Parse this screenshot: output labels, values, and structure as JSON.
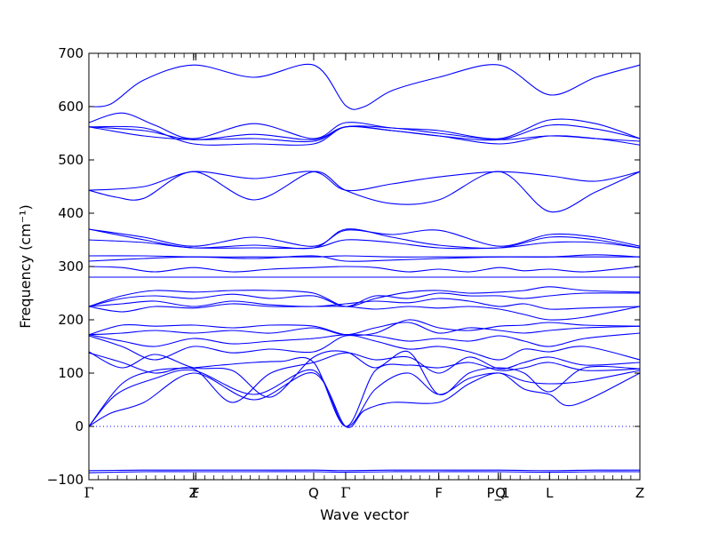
{
  "chart_data": {
    "type": "line",
    "title": "",
    "xlabel": "Wave vector",
    "ylabel": "Frequency (cm⁻¹)",
    "ylim": [
      -100,
      700
    ],
    "yticks": [
      -100,
      0,
      100,
      200,
      300,
      400,
      500,
      600,
      700
    ],
    "xlim": [
      0,
      100
    ],
    "x_ticks": [
      {
        "x": 0,
        "label": "Γ"
      },
      {
        "x": 19.0,
        "label": "Z"
      },
      {
        "x": 19.4,
        "label": "F"
      },
      {
        "x": 40.8,
        "label": "Q"
      },
      {
        "x": 46.6,
        "label": "Γ"
      },
      {
        "x": 63.5,
        "label": "F"
      },
      {
        "x": 74.3,
        "label": "P_1"
      },
      {
        "x": 74.7,
        "label": "Q"
      },
      {
        "x": 83.6,
        "label": "L"
      },
      {
        "x": 100,
        "label": "Z"
      }
    ],
    "zero_line": {
      "y": 0,
      "style": "dotted"
    },
    "series_color": "#0000ff",
    "series": [
      {
        "x": [
          0,
          10,
          19,
          30,
          40.8,
          46.6,
          55,
          63.5,
          74.5,
          83.6,
          92,
          100
        ],
        "y": [
          -87,
          -85,
          -85,
          -85,
          -85,
          -86,
          -85,
          -85,
          -85,
          -86,
          -85,
          -85
        ]
      },
      {
        "x": [
          0,
          10,
          19,
          30,
          40.8,
          46.6,
          55,
          63.5,
          74.5,
          83.6,
          92,
          100
        ],
        "y": [
          -83,
          -82,
          -82,
          -82,
          -82,
          -83,
          -82,
          -82,
          -82,
          -83,
          -82,
          -82
        ]
      },
      {
        "x": [
          0,
          4,
          10,
          19,
          30,
          40.8,
          46.6,
          50,
          55,
          63.5,
          69,
          74.5,
          79,
          83.6,
          88,
          100
        ],
        "y": [
          0,
          25,
          45,
          100,
          50,
          100,
          0,
          30,
          45,
          45,
          80,
          100,
          70,
          60,
          40,
          100
        ]
      },
      {
        "x": [
          0,
          5,
          12,
          19,
          30,
          40.8,
          46.6,
          52,
          58,
          63.5,
          69,
          74.5,
          79,
          83.6,
          90,
          100
        ],
        "y": [
          0,
          60,
          90,
          105,
          60,
          105,
          0,
          70,
          100,
          60,
          90,
          100,
          85,
          80,
          85,
          105
        ]
      },
      {
        "x": [
          0,
          6,
          12,
          19,
          24,
          30,
          35,
          40.8,
          46.6,
          52,
          58,
          63.5,
          69,
          74.5,
          79,
          83.6,
          90,
          100
        ],
        "y": [
          0,
          80,
          105,
          110,
          115,
          120,
          122,
          120,
          0,
          105,
          115,
          110,
          120,
          105,
          110,
          120,
          105,
          108
        ]
      },
      {
        "x": [
          0,
          6,
          12,
          19,
          26,
          33,
          40.8,
          46.6,
          52,
          58,
          63.5,
          69,
          74.5,
          79,
          83.6,
          90,
          100
        ],
        "y": [
          140,
          110,
          135,
          110,
          105,
          55,
          130,
          140,
          110,
          140,
          60,
          100,
          110,
          100,
          65,
          110,
          108
        ]
      },
      {
        "x": [
          0,
          6,
          12,
          19,
          26,
          33,
          40.8,
          46.6,
          52,
          58,
          63.5,
          69,
          74.5,
          79,
          83.6,
          90,
          100
        ],
        "y": [
          138,
          120,
          100,
          108,
          45,
          100,
          120,
          138,
          125,
          130,
          100,
          130,
          108,
          120,
          130,
          115,
          120
        ]
      },
      {
        "x": [
          0,
          6,
          12,
          19,
          26,
          33,
          40.8,
          46.6,
          52,
          58,
          63.5,
          69,
          74.5,
          79,
          83.6,
          90,
          100
        ],
        "y": [
          170,
          150,
          125,
          150,
          138,
          145,
          140,
          170,
          160,
          145,
          150,
          140,
          125,
          145,
          140,
          150,
          125
        ]
      },
      {
        "x": [
          0,
          6,
          12,
          19,
          26,
          33,
          40.8,
          46.6,
          52,
          58,
          63.5,
          69,
          74.5,
          79,
          83.6,
          90,
          100
        ],
        "y": [
          172,
          160,
          150,
          165,
          155,
          160,
          165,
          172,
          170,
          160,
          165,
          160,
          170,
          160,
          150,
          165,
          175
        ]
      },
      {
        "x": [
          0,
          6,
          12,
          19,
          26,
          33,
          40.8,
          46.6,
          52,
          58,
          63.5,
          69,
          74.5,
          79,
          83.6,
          90,
          100
        ],
        "y": [
          172,
          175,
          180,
          175,
          180,
          175,
          185,
          172,
          185,
          195,
          175,
          185,
          180,
          175,
          180,
          185,
          188
        ]
      },
      {
        "x": [
          0,
          6,
          12,
          19,
          26,
          33,
          40.8,
          46.6,
          52,
          58,
          63.5,
          69,
          74.5,
          79,
          83.6,
          90,
          100
        ],
        "y": [
          172,
          190,
          188,
          190,
          185,
          190,
          188,
          172,
          175,
          200,
          185,
          180,
          188,
          190,
          195,
          190,
          188
        ]
      },
      {
        "x": [
          0,
          6,
          12,
          19,
          26,
          33,
          40.8,
          46.6,
          52,
          58,
          63.5,
          69,
          74.5,
          79,
          83.6,
          90,
          100
        ],
        "y": [
          225,
          215,
          225,
          222,
          230,
          225,
          225,
          225,
          220,
          225,
          222,
          225,
          220,
          210,
          200,
          205,
          225
        ]
      },
      {
        "x": [
          0,
          6,
          12,
          19,
          26,
          33,
          40.8,
          46.6,
          52,
          58,
          63.5,
          69,
          74.5,
          79,
          83.6,
          90,
          100
        ],
        "y": [
          225,
          230,
          235,
          225,
          235,
          228,
          225,
          230,
          235,
          232,
          240,
          235,
          225,
          230,
          220,
          222,
          225
        ]
      },
      {
        "x": [
          0,
          6,
          12,
          19,
          26,
          33,
          40.8,
          46.6,
          52,
          58,
          63.5,
          69,
          74.5,
          79,
          83.6,
          90,
          100
        ],
        "y": [
          225,
          240,
          245,
          240,
          248,
          240,
          245,
          225,
          245,
          240,
          250,
          245,
          245,
          240,
          245,
          250,
          250
        ]
      },
      {
        "x": [
          0,
          6,
          12,
          19,
          26,
          33,
          40.8,
          46.6,
          52,
          58,
          63.5,
          69,
          74.5,
          79,
          83.6,
          90,
          100
        ],
        "y": [
          225,
          245,
          255,
          252,
          255,
          255,
          250,
          225,
          240,
          252,
          255,
          250,
          252,
          255,
          262,
          255,
          252
        ]
      },
      {
        "x": [
          0,
          10,
          19,
          30,
          40.8,
          46.6,
          55,
          63.5,
          74.5,
          83.6,
          92,
          100
        ],
        "y": [
          280,
          280,
          280,
          280,
          280,
          280,
          280,
          280,
          280,
          280,
          280,
          280
        ]
      },
      {
        "x": [
          0,
          6,
          12,
          19,
          26,
          33,
          40.8,
          46.6,
          52,
          58,
          63.5,
          69,
          74.5,
          79,
          83.6,
          90,
          100
        ],
        "y": [
          300,
          298,
          290,
          298,
          290,
          295,
          298,
          300,
          298,
          290,
          295,
          290,
          298,
          292,
          295,
          290,
          300
        ]
      },
      {
        "x": [
          0,
          10,
          19,
          30,
          40.8,
          46.6,
          55,
          63.5,
          74.5,
          83.6,
          92,
          100
        ],
        "y": [
          310,
          315,
          318,
          315,
          320,
          310,
          312,
          315,
          318,
          318,
          322,
          318
        ]
      },
      {
        "x": [
          0,
          10,
          19,
          30,
          40.8,
          46.6,
          55,
          63.5,
          74.5,
          83.6,
          92,
          100
        ],
        "y": [
          320,
          320,
          318,
          318,
          318,
          320,
          318,
          318,
          318,
          318,
          318,
          318
        ]
      },
      {
        "x": [
          0,
          10,
          19,
          30,
          40.8,
          46.6,
          55,
          63.5,
          74.5,
          83.6,
          92,
          100
        ],
        "y": [
          350,
          345,
          335,
          335,
          335,
          350,
          345,
          335,
          335,
          345,
          345,
          335
        ]
      },
      {
        "x": [
          0,
          10,
          19,
          30,
          40.8,
          46.6,
          55,
          63.5,
          74.5,
          83.6,
          92,
          100
        ],
        "y": [
          370,
          350,
          335,
          340,
          335,
          370,
          355,
          340,
          335,
          355,
          350,
          335
        ]
      },
      {
        "x": [
          0,
          10,
          19,
          30,
          40.8,
          46.6,
          55,
          63.5,
          74.5,
          83.6,
          92,
          100
        ],
        "y": [
          370,
          355,
          338,
          355,
          338,
          368,
          360,
          368,
          338,
          360,
          355,
          338
        ]
      },
      {
        "x": [
          0,
          5,
          10,
          19,
          30,
          40.8,
          46.6,
          55,
          63.5,
          74.5,
          83.6,
          92,
          100
        ],
        "y": [
          443,
          430,
          428,
          478,
          425,
          478,
          443,
          418,
          425,
          478,
          403,
          440,
          478
        ]
      },
      {
        "x": [
          0,
          10,
          19,
          30,
          40.8,
          46.6,
          55,
          63.5,
          74.5,
          83.6,
          92,
          100
        ],
        "y": [
          443,
          450,
          478,
          465,
          478,
          443,
          455,
          468,
          478,
          470,
          460,
          478
        ]
      },
      {
        "x": [
          0,
          10,
          19,
          30,
          40.8,
          46.6,
          55,
          63.5,
          74.5,
          83.6,
          92,
          100
        ],
        "y": [
          562,
          560,
          530,
          530,
          530,
          562,
          555,
          545,
          530,
          545,
          540,
          528
        ]
      },
      {
        "x": [
          0,
          10,
          19,
          30,
          40.8,
          46.6,
          55,
          63.5,
          74.5,
          83.6,
          92,
          100
        ],
        "y": [
          562,
          545,
          538,
          540,
          535,
          562,
          560,
          550,
          538,
          545,
          540,
          535
        ]
      },
      {
        "x": [
          0,
          10,
          19,
          30,
          40.8,
          46.6,
          55,
          63.5,
          74.5,
          83.6,
          92,
          100
        ],
        "y": [
          562,
          555,
          538,
          548,
          538,
          562,
          555,
          545,
          538,
          565,
          558,
          540
        ]
      },
      {
        "x": [
          0,
          6,
          12,
          19,
          30,
          40.8,
          46.6,
          55,
          63.5,
          74.5,
          83.6,
          92,
          100
        ],
        "y": [
          570,
          588,
          565,
          540,
          568,
          540,
          570,
          560,
          555,
          540,
          575,
          568,
          540
        ]
      },
      {
        "x": [
          0,
          4,
          10,
          19,
          30,
          40.8,
          46.6,
          50,
          55,
          63.5,
          74.5,
          83.6,
          92,
          100
        ],
        "y": [
          600,
          605,
          650,
          678,
          655,
          678,
          602,
          600,
          630,
          655,
          678,
          622,
          655,
          678
        ]
      }
    ]
  }
}
